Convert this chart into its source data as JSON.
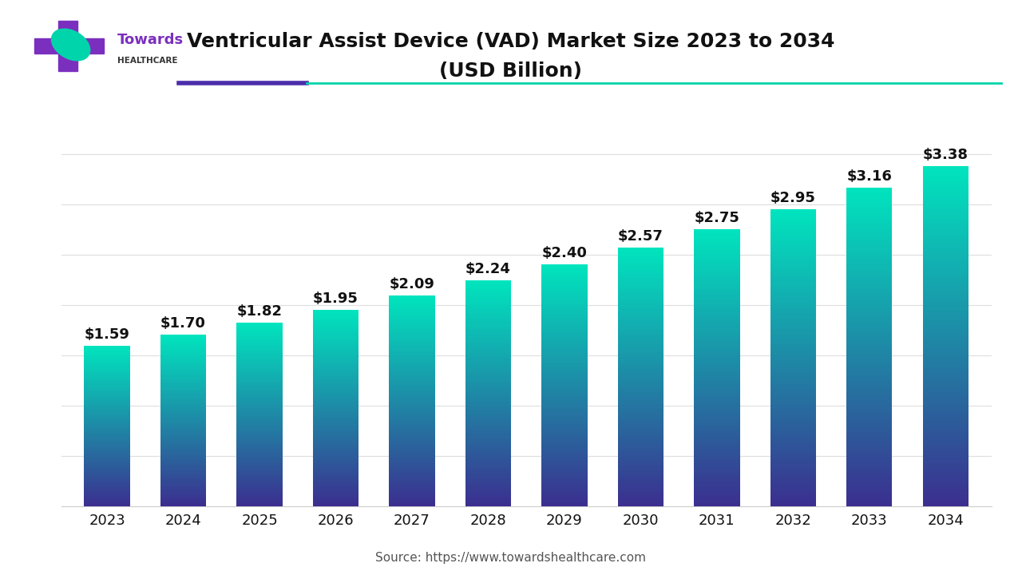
{
  "title_line1": "Ventricular Assist Device (VAD) Market Size 2023 to 2034",
  "title_line2": "(USD Billion)",
  "source_text": "Source: https://www.towardshealthcare.com",
  "years": [
    2023,
    2024,
    2025,
    2026,
    2027,
    2028,
    2029,
    2030,
    2031,
    2032,
    2033,
    2034
  ],
  "values": [
    1.59,
    1.7,
    1.82,
    1.95,
    2.09,
    2.24,
    2.4,
    2.57,
    2.75,
    2.95,
    3.16,
    3.38
  ],
  "bar_color_top": "#00E5BE",
  "bar_color_bottom": "#3B2F8F",
  "background_color": "#FFFFFF",
  "plot_bg_color": "#FFFFFF",
  "grid_color": "#E0E0E0",
  "label_color": "#111111",
  "title_color": "#111111",
  "source_color": "#555555",
  "bar_width": 0.6,
  "ylim": [
    0,
    4.0
  ],
  "title_fontsize": 18,
  "label_fontsize": 13,
  "tick_fontsize": 13,
  "source_fontsize": 11,
  "accent_purple": "#4B2DAB",
  "accent_teal": "#00D4AA",
  "logo_purple": "#7B2FBE",
  "logo_teal": "#00D4AA",
  "logo_text_color": "#7B2FBE",
  "logo_sub_color": "#333333"
}
